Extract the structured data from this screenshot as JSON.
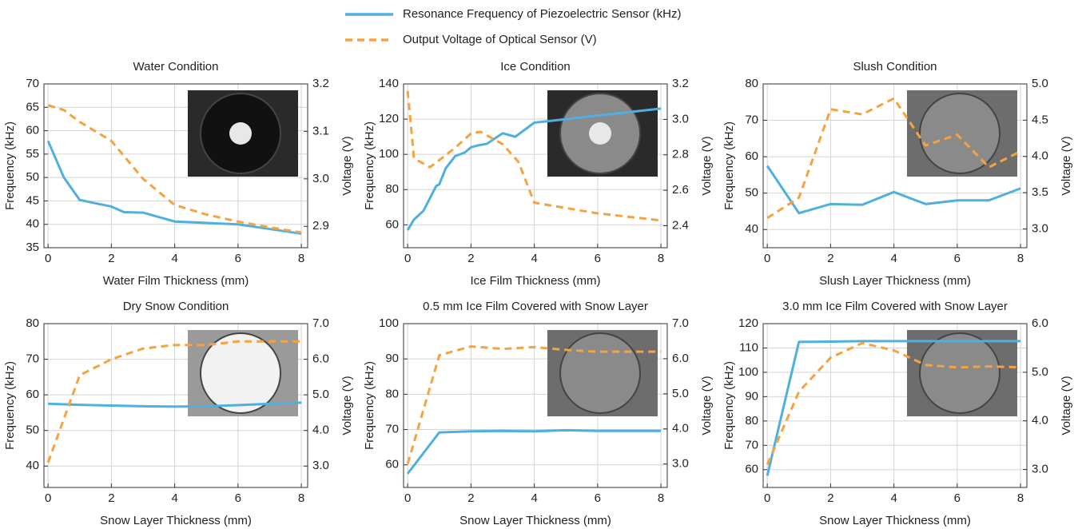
{
  "legend": [
    {
      "name": "Resonance Frequency of Piezoelectric Sensor (kHz)",
      "color": "#4fb0e0",
      "style": "solid"
    },
    {
      "name": "Output Voltage of Optical Sensor (V)",
      "color": "#f4a340",
      "style": "dashed"
    }
  ],
  "chart_data": [
    {
      "type": "line",
      "title": "Water Condition",
      "xlabel": "Water Film Thickness (mm)",
      "ylabel": "Frequency (kHz)",
      "y2label": "Voltage (V)",
      "xlim": [
        -0.13,
        8.2
      ],
      "xticks": [
        0,
        2,
        4,
        6,
        8
      ],
      "ylim": [
        35,
        70
      ],
      "yticks": [
        35,
        40,
        45,
        50,
        55,
        60,
        65,
        70
      ],
      "y2lim": [
        2.855,
        3.2
      ],
      "y2ticks": [
        2.9,
        {
          "value": 3,
          "label": "3.0"
        },
        3.1,
        3.2
      ],
      "grid": true,
      "series": [
        {
          "x": [
            0,
            0.5,
            1,
            2,
            2.4,
            3,
            4,
            5,
            6,
            7,
            8
          ],
          "values": [
            57.8,
            50,
            45.2,
            43.8,
            42.6,
            42.5,
            40.6,
            40.3,
            40,
            39,
            38
          ],
          "axis": "y"
        },
        {
          "x": [
            0,
            0.5,
            1,
            2,
            2.5,
            3,
            4,
            5,
            6,
            7,
            8
          ],
          "values": [
            3.155,
            3.145,
            3.12,
            3.08,
            3.04,
            3.0,
            2.945,
            2.925,
            2.91,
            2.898,
            2.887
          ],
          "axis": "y2"
        }
      ]
    },
    {
      "type": "line",
      "title": "Ice Condition",
      "xlabel": "Ice Film Thickness (mm)",
      "ylabel": "Frequency (kHz)",
      "y2label": "Voltage (V)",
      "xlim": [
        -0.13,
        8.2
      ],
      "xticks": [
        0,
        2,
        4,
        6,
        8
      ],
      "ylim": [
        47,
        140
      ],
      "yticks": [
        60,
        80,
        100,
        120,
        140
      ],
      "y2lim": [
        2.276,
        3.2
      ],
      "y2ticks": [
        2.4,
        2.6,
        2.8,
        {
          "value": 3,
          "label": "3.0"
        },
        3.2
      ],
      "grid": true,
      "series": [
        {
          "x": [
            0,
            0.2,
            0.5,
            0.7,
            0.9,
            1.0,
            1.2,
            1.5,
            1.8,
            2.0,
            2.2,
            2.5,
            3.0,
            3.4,
            4,
            5,
            6,
            7,
            8
          ],
          "values": [
            57,
            63,
            68,
            75,
            82,
            83,
            92,
            99,
            101,
            104,
            105,
            106,
            112,
            110,
            118,
            120,
            122,
            124,
            126
          ],
          "axis": "y"
        },
        {
          "x": [
            0,
            0.2,
            0.5,
            0.7,
            1.0,
            1.5,
            2.0,
            2.3,
            3.0,
            3.5,
            4,
            5,
            6,
            7,
            8
          ],
          "values": [
            3.16,
            2.78,
            2.75,
            2.73,
            2.77,
            2.84,
            2.92,
            2.93,
            2.86,
            2.76,
            2.53,
            2.5,
            2.47,
            2.45,
            2.43
          ],
          "axis": "y2"
        }
      ]
    },
    {
      "type": "line",
      "title": "Slush Condition",
      "xlabel": "Slush Layer Thickness (mm)",
      "ylabel": "Frequency (kHz)",
      "y2label": "Voltage (V)",
      "xlim": [
        -0.13,
        8.2
      ],
      "xticks": [
        0,
        2,
        4,
        6,
        8
      ],
      "ylim": [
        35,
        80
      ],
      "yticks": [
        40,
        50,
        60,
        70,
        80
      ],
      "y2lim": [
        2.74,
        5.0
      ],
      "y2ticks": [
        {
          "value": 3,
          "label": "3.0"
        },
        3.5,
        {
          "value": 4,
          "label": "4.0"
        },
        4.5,
        {
          "value": 5,
          "label": "5.0"
        }
      ],
      "grid": true,
      "series": [
        {
          "x": [
            0,
            1,
            2,
            3,
            4,
            5,
            6,
            7,
            8
          ],
          "values": [
            57.5,
            44.5,
            47,
            46.8,
            50.3,
            47,
            48,
            48,
            51.3
          ],
          "axis": "y"
        },
        {
          "x": [
            0,
            1,
            2,
            3,
            4,
            5,
            6,
            7,
            8
          ],
          "values": [
            3.15,
            3.43,
            4.65,
            4.58,
            4.8,
            4.15,
            4.3,
            3.85,
            4.07
          ],
          "axis": "y2"
        }
      ]
    },
    {
      "type": "line",
      "title": "Dry Snow Condition",
      "xlabel": "Snow Layer Thickness (mm)",
      "ylabel": "Frequency (kHz)",
      "y2label": "Voltage (V)",
      "xlim": [
        -0.13,
        8.2
      ],
      "xticks": [
        0,
        2,
        4,
        6,
        8
      ],
      "ylim": [
        34,
        80
      ],
      "yticks": [
        40,
        50,
        60,
        70,
        80
      ],
      "y2lim": [
        2.4,
        7.0
      ],
      "y2ticks": [
        {
          "value": 3,
          "label": "3.0"
        },
        {
          "value": 4,
          "label": "4.0"
        },
        {
          "value": 5,
          "label": "5.0"
        },
        {
          "value": 6,
          "label": "6.0"
        },
        {
          "value": 7,
          "label": "7.0"
        }
      ],
      "grid": true,
      "series": [
        {
          "x": [
            0,
            1,
            2,
            3,
            4,
            5,
            6,
            7,
            8
          ],
          "values": [
            57.5,
            57.2,
            57,
            56.8,
            56.7,
            56.8,
            57.1,
            57.5,
            57.8
          ],
          "axis": "y"
        },
        {
          "x": [
            0,
            1,
            2,
            3,
            4,
            5,
            6,
            7,
            8
          ],
          "values": [
            3.1,
            5.55,
            6.0,
            6.3,
            6.4,
            6.4,
            6.5,
            6.5,
            6.5
          ],
          "axis": "y2"
        }
      ]
    },
    {
      "type": "line",
      "title": "0.5 mm Ice Film Covered with Snow Layer",
      "xlabel": "Snow Layer Thickness (mm)",
      "ylabel": "Frequency (kHz)",
      "y2label": "Voltage (V)",
      "xlim": [
        -0.13,
        8.2
      ],
      "xticks": [
        0,
        2,
        4,
        6,
        8
      ],
      "ylim": [
        53.6,
        100
      ],
      "yticks": [
        60,
        70,
        80,
        90,
        100
      ],
      "y2lim": [
        2.33,
        7.0
      ],
      "y2ticks": [
        {
          "value": 3,
          "label": "3.0"
        },
        {
          "value": 4,
          "label": "4.0"
        },
        {
          "value": 5,
          "label": "5.0"
        },
        {
          "value": 6,
          "label": "6.0"
        },
        {
          "value": 7,
          "label": "7.0"
        }
      ],
      "grid": true,
      "series": [
        {
          "x": [
            0,
            1,
            2,
            3,
            4,
            5,
            6,
            7,
            8
          ],
          "values": [
            57.5,
            69.2,
            69.5,
            69.6,
            69.5,
            69.8,
            69.6,
            69.6,
            69.6
          ],
          "axis": "y"
        },
        {
          "x": [
            0,
            1,
            2,
            3,
            4,
            5,
            6,
            7,
            8
          ],
          "values": [
            3.0,
            6.1,
            6.35,
            6.28,
            6.33,
            6.25,
            6.2,
            6.2,
            6.2
          ],
          "axis": "y2"
        }
      ]
    },
    {
      "type": "line",
      "title": "3.0 mm Ice Film Covered with Snow Layer",
      "xlabel": "Snow Layer Thickness (mm)",
      "ylabel": "Frequency (kHz)",
      "y2label": "Voltage (V)",
      "xlim": [
        -0.13,
        8.2
      ],
      "xticks": [
        0,
        2,
        4,
        6,
        8
      ],
      "ylim": [
        52.7,
        120
      ],
      "yticks": [
        60,
        70,
        80,
        90,
        100,
        110,
        120
      ],
      "y2lim": [
        2.63,
        6.0
      ],
      "y2ticks": [
        {
          "value": 3,
          "label": "3.0"
        },
        {
          "value": 4,
          "label": "4.0"
        },
        {
          "value": 5,
          "label": "5.0"
        },
        {
          "value": 6,
          "label": "6.0"
        }
      ],
      "grid": true,
      "series": [
        {
          "x": [
            0,
            1,
            2,
            3,
            4,
            5,
            6,
            7,
            8
          ],
          "values": [
            57.5,
            112.5,
            112.6,
            112.8,
            112.8,
            112.8,
            112.8,
            112.8,
            112.8
          ],
          "axis": "y"
        },
        {
          "x": [
            0,
            1,
            2,
            3,
            4,
            5,
            6,
            7,
            8
          ],
          "values": [
            3.1,
            4.6,
            5.3,
            5.6,
            5.45,
            5.15,
            5.1,
            5.12,
            5.1
          ],
          "axis": "y2"
        }
      ]
    }
  ]
}
